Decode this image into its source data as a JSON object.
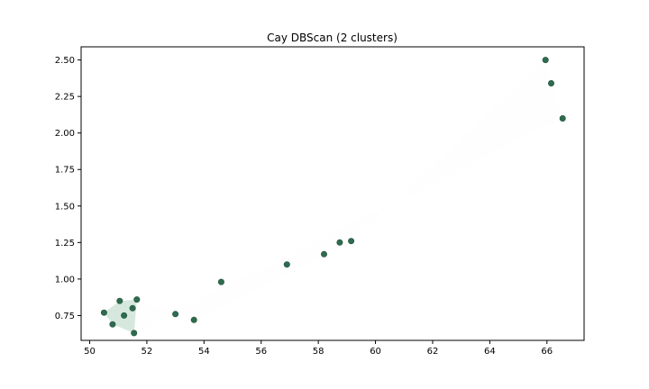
{
  "chart_data": {
    "type": "scatter",
    "title": "Cay DBScan (2 clusters)",
    "xlabel": "",
    "ylabel": "",
    "xlim": [
      49.7,
      67.3
    ],
    "ylim": [
      0.58,
      2.59
    ],
    "x_ticks": [
      50,
      52,
      54,
      56,
      58,
      60,
      62,
      64,
      66
    ],
    "y_ticks": [
      0.75,
      1.0,
      1.25,
      1.5,
      1.75,
      2.0,
      2.25,
      2.5
    ],
    "y_tick_labels": [
      "0.75",
      "1.00",
      "1.25",
      "1.50",
      "1.75",
      "2.00",
      "2.25",
      "2.50"
    ],
    "grid": false,
    "point_color": "#2e6b4f",
    "hull_fill_color": "#a3cbb4",
    "points": [
      {
        "x": 50.5,
        "y": 0.77
      },
      {
        "x": 50.8,
        "y": 0.69
      },
      {
        "x": 51.05,
        "y": 0.85
      },
      {
        "x": 51.2,
        "y": 0.75
      },
      {
        "x": 51.5,
        "y": 0.8
      },
      {
        "x": 51.55,
        "y": 0.63
      },
      {
        "x": 51.65,
        "y": 0.86
      },
      {
        "x": 53.0,
        "y": 0.76
      },
      {
        "x": 53.65,
        "y": 0.72
      },
      {
        "x": 54.6,
        "y": 0.98
      },
      {
        "x": 56.9,
        "y": 1.1
      },
      {
        "x": 58.2,
        "y": 1.17
      },
      {
        "x": 58.75,
        "y": 1.25
      },
      {
        "x": 59.15,
        "y": 1.26
      },
      {
        "x": 65.95,
        "y": 2.5
      },
      {
        "x": 66.15,
        "y": 2.34
      },
      {
        "x": 66.55,
        "y": 2.1
      }
    ],
    "hulls": [
      {
        "points": [
          [
            50.5,
            0.77
          ],
          [
            51.05,
            0.85
          ],
          [
            51.65,
            0.86
          ],
          [
            51.55,
            0.63
          ],
          [
            50.8,
            0.69
          ]
        ],
        "opacity": 0.45
      },
      {
        "points": [
          [
            51.65,
            0.86
          ],
          [
            53.0,
            0.76
          ],
          [
            53.65,
            0.72
          ],
          [
            58.2,
            1.17
          ],
          [
            58.75,
            1.25
          ],
          [
            59.15,
            1.26
          ],
          [
            65.95,
            2.5
          ],
          [
            66.55,
            2.1
          ],
          [
            51.55,
            0.63
          ]
        ],
        "opacity": 0.012
      }
    ]
  }
}
